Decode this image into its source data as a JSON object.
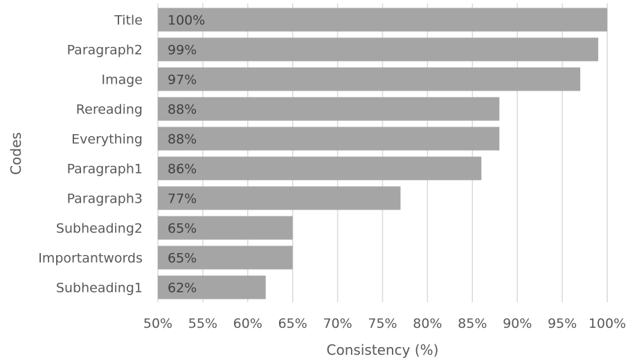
{
  "chart_data": {
    "type": "bar",
    "orientation": "horizontal",
    "categories": [
      "Title",
      "Paragraph2",
      "Image",
      "Rereading",
      "Everything",
      "Paragraph1",
      "Paragraph3",
      "Subheading2",
      "Importantwords",
      "Subheading1"
    ],
    "values": [
      100,
      99,
      97,
      88,
      88,
      86,
      77,
      65,
      65,
      62
    ],
    "value_labels": [
      "100%",
      "99%",
      "97%",
      "88%",
      "88%",
      "86%",
      "77%",
      "65%",
      "65%",
      "62%"
    ],
    "xlabel": "Consistency (%)",
    "ylabel": "Codes",
    "xlim": [
      50,
      100
    ],
    "x_ticks": [
      50,
      55,
      60,
      65,
      70,
      75,
      80,
      85,
      90,
      95,
      100
    ],
    "x_tick_labels": [
      "50%",
      "55%",
      "60%",
      "65%",
      "70%",
      "75%",
      "80%",
      "85%",
      "90%",
      "95%",
      "100%"
    ],
    "grid": "vertical",
    "legend": "none",
    "colors": {
      "bar": "#a5a5a5",
      "grid": "#d9d9d9",
      "text": "#595959",
      "bar_label": "#404040"
    }
  }
}
